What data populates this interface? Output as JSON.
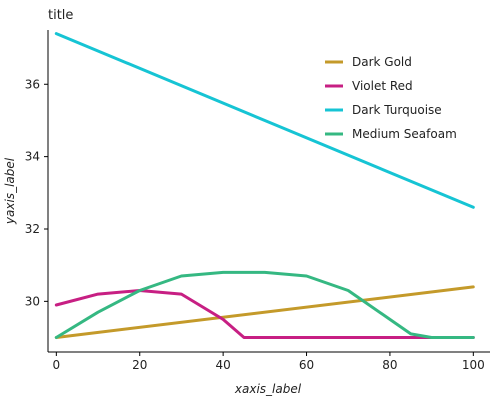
{
  "chart_data": {
    "type": "line",
    "title": "title",
    "xlabel": "xaxis_label",
    "ylabel": "yaxis_label",
    "xlim": [
      -2,
      104
    ],
    "ylim": [
      28.6,
      37.5
    ],
    "xticks": [
      0,
      20,
      40,
      60,
      80,
      100
    ],
    "yticks": [
      30,
      32,
      34,
      36
    ],
    "legend": "top-right",
    "grid": false,
    "series": [
      {
        "name": "Dark Gold",
        "color": "#c49a2a",
        "x": [
          0,
          100
        ],
        "y": [
          29.0,
          30.4
        ]
      },
      {
        "name": "Violet Red",
        "color": "#c71f83",
        "x": [
          0,
          10,
          20,
          30,
          40,
          45,
          50,
          55,
          60,
          100
        ],
        "y": [
          29.9,
          30.2,
          30.3,
          30.2,
          29.5,
          29.0,
          29.0,
          29.0,
          29.0,
          29.0
        ]
      },
      {
        "name": "Dark Turquoise",
        "color": "#16c4d4",
        "x": [
          0,
          100
        ],
        "y": [
          37.4,
          32.6
        ]
      },
      {
        "name": "Medium Seafoam",
        "color": "#35b882",
        "x": [
          0,
          10,
          20,
          30,
          40,
          50,
          60,
          70,
          80,
          85,
          90,
          100
        ],
        "y": [
          29.0,
          29.7,
          30.3,
          30.7,
          30.8,
          30.8,
          30.7,
          30.3,
          29.5,
          29.1,
          29.0,
          29.0
        ]
      }
    ]
  }
}
